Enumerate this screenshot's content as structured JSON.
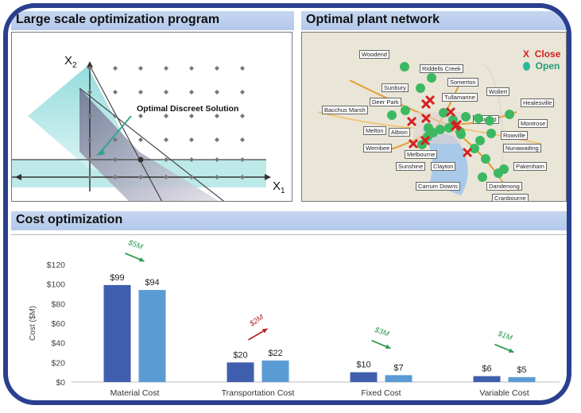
{
  "panels": {
    "lp_title": "Large scale optimization program",
    "network_title": "Optimal plant network",
    "cost_title": "Cost optimization"
  },
  "lp": {
    "y_axis_label": "X",
    "y_axis_sub": "2",
    "x_axis_label": "X",
    "x_axis_sub": "1",
    "annotation": "Optimal Discreet Solution"
  },
  "map": {
    "legend_closed_symbol": "X",
    "legend_closed_label": "Close",
    "legend_open_label": "Open",
    "towns": [
      "Woodend",
      "Riddells Creek",
      "Somerton",
      "Sunbury",
      "Tullamarine",
      "Wollert",
      "Deer Park",
      "Healesville",
      "Bacchus Marsh",
      "Fairfield",
      "Montrose",
      "Melton",
      "Albion",
      "Rowville",
      "Werribee",
      "Melbourne",
      "Nunawading",
      "Sunshine",
      "Clayton",
      "Pakenham",
      "Dandenong",
      "Carrum Downs",
      "Cranbourne"
    ],
    "colors": {
      "open": "#3cb862",
      "closed": "#d42020"
    }
  },
  "chart_data": {
    "type": "bar",
    "ylabel": "Cost ($M)",
    "ylim": [
      0,
      120
    ],
    "yticks": [
      "$0",
      "$20",
      "$40",
      "$60",
      "$80",
      "$100",
      "$120"
    ],
    "categories": [
      "Material Cost",
      "Transportation Cost",
      "Fixed Cost",
      "Variable Cost"
    ],
    "series": [
      {
        "values": [
          99,
          20,
          10,
          6
        ],
        "labels": [
          "$99",
          "$20",
          "$10",
          "$6"
        ],
        "color": "#3f5fae"
      },
      {
        "values": [
          94,
          22,
          7,
          5
        ],
        "labels": [
          "$94",
          "$22",
          "$7",
          "$5"
        ],
        "color": "#5b9bd5"
      }
    ],
    "annotations": [
      {
        "text": "$5M",
        "direction": "down",
        "color": "#2e9a4e"
      },
      {
        "text": "$2M",
        "direction": "up",
        "color": "#b32424"
      },
      {
        "text": "$3M",
        "direction": "down",
        "color": "#2e9a4e"
      },
      {
        "text": "$1M",
        "direction": "down",
        "color": "#2e9a4e"
      }
    ]
  }
}
